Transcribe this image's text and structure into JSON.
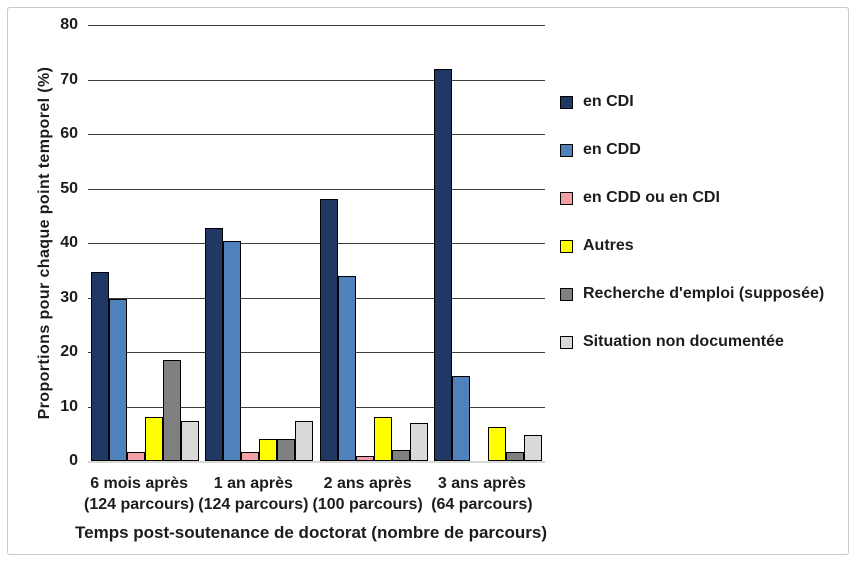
{
  "chart_data": {
    "type": "bar",
    "title": "",
    "ylabel": "Proportions  pour chaque point temporel (%)",
    "xlabel": "Temps post-soutenance de doctorat (nombre de parcours)",
    "ylim": [
      0,
      80
    ],
    "ytick_step": 10,
    "yticks": [
      0,
      10,
      20,
      30,
      40,
      50,
      60,
      70,
      80
    ],
    "grid": true,
    "legend_position": "right",
    "categories": [
      {
        "line1": "6 mois après",
        "line2": "(124 parcours)"
      },
      {
        "line1": "1 an après",
        "line2": "(124 parcours)"
      },
      {
        "line1": "2 ans après",
        "line2": "(100 parcours)"
      },
      {
        "line1": "3 ans après",
        "line2": "(64 parcours)"
      }
    ],
    "series": [
      {
        "name": "en CDI",
        "color": "#1F3864",
        "values": [
          34.7,
          42.7,
          48.0,
          71.9
        ]
      },
      {
        "name": "en CDD",
        "color": "#4F81BD",
        "values": [
          29.8,
          40.3,
          34.0,
          15.6
        ]
      },
      {
        "name": "en CDD ou en CDI",
        "color": "#F2A0A5",
        "values": [
          1.6,
          1.6,
          1.0,
          0.0
        ]
      },
      {
        "name": "Autres",
        "color": "#FFFF00",
        "values": [
          8.1,
          4.0,
          8.0,
          6.3
        ]
      },
      {
        "name": "Recherche d'emploi (supposée)",
        "color": "#808080",
        "values": [
          18.5,
          4.0,
          2.0,
          1.6
        ]
      },
      {
        "name": "Situation non documentée",
        "color": "#D9D9D9",
        "values": [
          7.3,
          7.3,
          7.0,
          4.7
        ]
      }
    ]
  }
}
